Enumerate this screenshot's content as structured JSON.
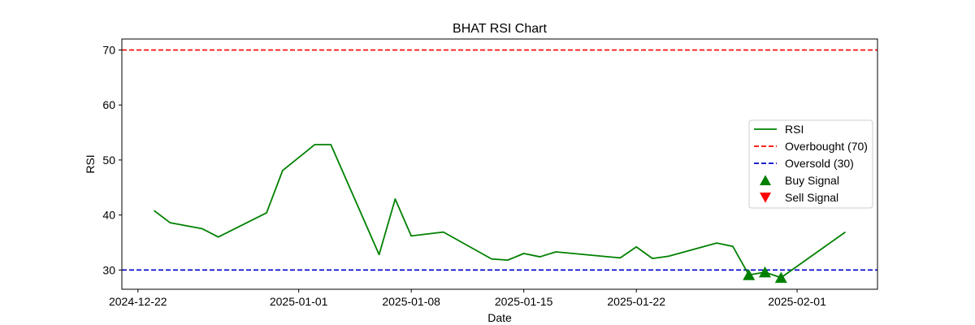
{
  "chart_data": {
    "type": "line",
    "title": "BHAT RSI Chart",
    "xlabel": "Date",
    "ylabel": "RSI",
    "x_tick_labels": [
      "2024-12-22",
      "2025-01-01",
      "2025-01-08",
      "2025-01-15",
      "2025-01-22",
      "2025-02-01"
    ],
    "y_ticks": [
      30,
      40,
      50,
      60,
      70
    ],
    "ylim": [
      26.5,
      72
    ],
    "xlim": [
      "2024-12-21",
      "2025-02-06"
    ],
    "grid": false,
    "legend_position": "center-right",
    "series": [
      {
        "name": "RSI",
        "color": "#008000",
        "points": [
          [
            "2024-12-23",
            40.8
          ],
          [
            "2024-12-24",
            38.6
          ],
          [
            "2024-12-26",
            37.5
          ],
          [
            "2024-12-27",
            36.0
          ],
          [
            "2024-12-30",
            40.4
          ],
          [
            "2024-12-31",
            48.1
          ],
          [
            "2025-01-02",
            52.8
          ],
          [
            "2025-01-03",
            52.8
          ],
          [
            "2025-01-06",
            32.8
          ],
          [
            "2025-01-07",
            42.9
          ],
          [
            "2025-01-08",
            36.2
          ],
          [
            "2025-01-10",
            36.9
          ],
          [
            "2025-01-13",
            32.0
          ],
          [
            "2025-01-14",
            31.8
          ],
          [
            "2025-01-15",
            33.0
          ],
          [
            "2025-01-16",
            32.4
          ],
          [
            "2025-01-17",
            33.3
          ],
          [
            "2025-01-21",
            32.2
          ],
          [
            "2025-01-22",
            34.2
          ],
          [
            "2025-01-23",
            32.1
          ],
          [
            "2025-01-24",
            32.5
          ],
          [
            "2025-01-27",
            34.9
          ],
          [
            "2025-01-28",
            34.3
          ],
          [
            "2025-01-29",
            29.1
          ],
          [
            "2025-01-30",
            29.6
          ],
          [
            "2025-01-31",
            28.6
          ],
          [
            "2025-02-04",
            36.9
          ]
        ]
      }
    ],
    "reference_lines": [
      {
        "name": "Overbought (70)",
        "value": 70,
        "color": "#ff0000"
      },
      {
        "name": "Oversold (30)",
        "value": 30,
        "color": "#0000cc"
      }
    ],
    "buy_signals": {
      "name": "Buy Signal",
      "color": "#008000",
      "points": [
        [
          "2025-01-29",
          29.1
        ],
        [
          "2025-01-30",
          29.6
        ],
        [
          "2025-01-31",
          28.6
        ]
      ]
    },
    "sell_signals": {
      "name": "Sell Signal",
      "color": "#ff0000",
      "points": []
    }
  }
}
